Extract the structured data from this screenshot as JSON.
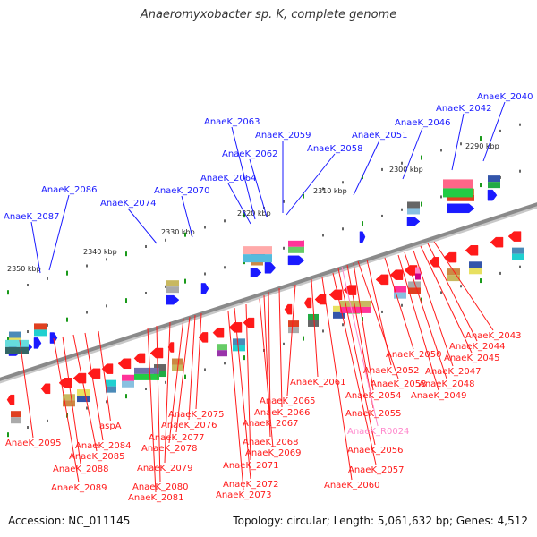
{
  "title": "Anaeromyxobacter sp. K, complete genome",
  "footer": {
    "accession": "Accession: NC_011145",
    "summary": "Topology: circular; Length: 5,061,632 bp; Genes: 4,512"
  },
  "colors": {
    "forward": "#1a1aff",
    "reverse": "#ff1a1a",
    "rna": "#ff88cc",
    "backbone": "#8a8a8a"
  },
  "scale_labels": [
    "2290 kbp",
    "2300 kbp",
    "2310 kbp",
    "2320 kbp",
    "2330 kbp",
    "2340 kbp",
    "2350 kbp"
  ],
  "forward_genes": [
    "AnaeK_2040",
    "AnaeK_2042",
    "AnaeK_2046",
    "AnaeK_2051",
    "AnaeK_2058",
    "AnaeK_2059",
    "AnaeK_2062",
    "AnaeK_2063",
    "AnaeK_2064",
    "AnaeK_2070",
    "AnaeK_2074",
    "AnaeK_2086",
    "AnaeK_2087"
  ],
  "reverse_genes": [
    "AnaeK_2043",
    "AnaeK_2044",
    "AnaeK_2045",
    "AnaeK_2047",
    "AnaeK_2048",
    "AnaeK_2049",
    "AnaeK_2050",
    "AnaeK_2052",
    "AnaeK_2053",
    "AnaeK_2054",
    "AnaeK_2055",
    "AnaeK_R0024",
    "AnaeK_2056",
    "AnaeK_2057",
    "AnaeK_2060",
    "AnaeK_2061",
    "AnaeK_2065",
    "AnaeK_2066",
    "AnaeK_2067",
    "AnaeK_2068",
    "AnaeK_2069",
    "AnaeK_2071",
    "AnaeK_2072",
    "AnaeK_2073",
    "AnaeK_2075",
    "AnaeK_2076",
    "AnaeK_2077",
    "AnaeK_2078",
    "AnaeK_2079",
    "AnaeK_2080",
    "AnaeK_2081",
    "aspA",
    "AnaeK_2084",
    "AnaeK_2085",
    "AnaeK_2088",
    "AnaeK_2089",
    "AnaeK_2095"
  ]
}
